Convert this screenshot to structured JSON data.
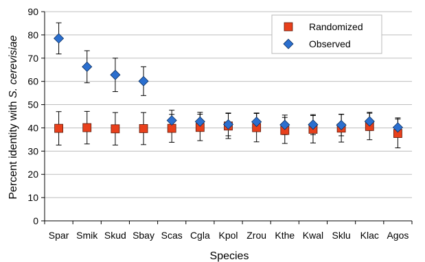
{
  "chart_data": {
    "type": "scatter",
    "title": "",
    "xlabel": "Species",
    "ylabel_prefix": "Percent identity with ",
    "ylabel_italic": "S. cerevisiae",
    "ylim": [
      0,
      90
    ],
    "yticks": [
      0,
      10,
      20,
      30,
      40,
      50,
      60,
      70,
      80,
      90
    ],
    "grid": "horizontal",
    "legend_position": "top-right",
    "categories": [
      "Spar",
      "Smik",
      "Skud",
      "Sbay",
      "Scas",
      "Cgla",
      "Kpol",
      "Zrou",
      "Kthe",
      "Kwal",
      "Sklu",
      "Klac",
      "Agos"
    ],
    "series": [
      {
        "name": "Randomized",
        "marker": "square",
        "color": "#e8401c",
        "values": [
          39.8,
          40.1,
          39.6,
          39.7,
          39.8,
          40.2,
          40.8,
          40.1,
          38.9,
          39.4,
          39.9,
          40.6,
          37.6
        ],
        "errors": [
          7.2,
          7.0,
          7.0,
          6.9,
          6.0,
          5.7,
          5.4,
          6.1,
          5.6,
          5.9,
          6.0,
          5.7,
          6.2
        ]
      },
      {
        "name": "Observed",
        "marker": "diamond",
        "color": "#2b6fcf",
        "values": [
          78.5,
          66.3,
          62.8,
          60.1,
          43.2,
          42.7,
          41.5,
          42.6,
          41.3,
          41.4,
          41.2,
          42.8,
          40.2
        ],
        "errors": [
          6.7,
          6.9,
          7.2,
          6.2,
          4.4,
          4.0,
          4.9,
          3.8,
          4.2,
          4.3,
          4.6,
          3.9,
          4.1
        ]
      }
    ]
  }
}
